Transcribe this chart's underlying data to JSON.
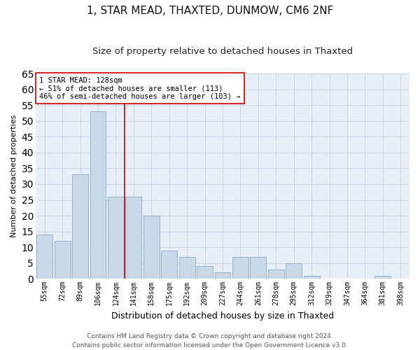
{
  "title1": "1, STAR MEAD, THAXTED, DUNMOW, CM6 2NF",
  "title2": "Size of property relative to detached houses in Thaxted",
  "xlabel": "Distribution of detached houses by size in Thaxted",
  "ylabel": "Number of detached properties",
  "categories": [
    "55sqm",
    "72sqm",
    "89sqm",
    "106sqm",
    "124sqm",
    "141sqm",
    "158sqm",
    "175sqm",
    "192sqm",
    "209sqm",
    "227sqm",
    "244sqm",
    "261sqm",
    "278sqm",
    "295sqm",
    "312sqm",
    "329sqm",
    "347sqm",
    "364sqm",
    "381sqm",
    "398sqm"
  ],
  "values": [
    14,
    12,
    33,
    53,
    26,
    26,
    20,
    9,
    7,
    4,
    2,
    7,
    7,
    3,
    5,
    1,
    0,
    0,
    0,
    1,
    0
  ],
  "bar_color": "#c8d8e8",
  "bar_edge_color": "#8aaac0",
  "vline_x": 4.5,
  "vline_color": "#cc0000",
  "annotation_text": "1 STAR MEAD: 128sqm\n← 51% of detached houses are smaller (113)\n46% of semi-detached houses are larger (103) →",
  "annotation_box_color": "#ffffff",
  "annotation_box_edge": "#cc0000",
  "ylim": [
    0,
    65
  ],
  "yticks": [
    0,
    5,
    10,
    15,
    20,
    25,
    30,
    35,
    40,
    45,
    50,
    55,
    60,
    65
  ],
  "footer1": "Contains HM Land Registry data © Crown copyright and database right 2024.",
  "footer2": "Contains public sector information licensed under the Open Government Licence v3.0.",
  "grid_color": "#c8d4e4",
  "plot_bg_color": "#e8eef6",
  "title1_fontsize": 11,
  "title2_fontsize": 9.5,
  "xlabel_fontsize": 9,
  "ylabel_fontsize": 8,
  "tick_fontsize": 7,
  "annot_fontsize": 7.5,
  "footer_fontsize": 6.5
}
